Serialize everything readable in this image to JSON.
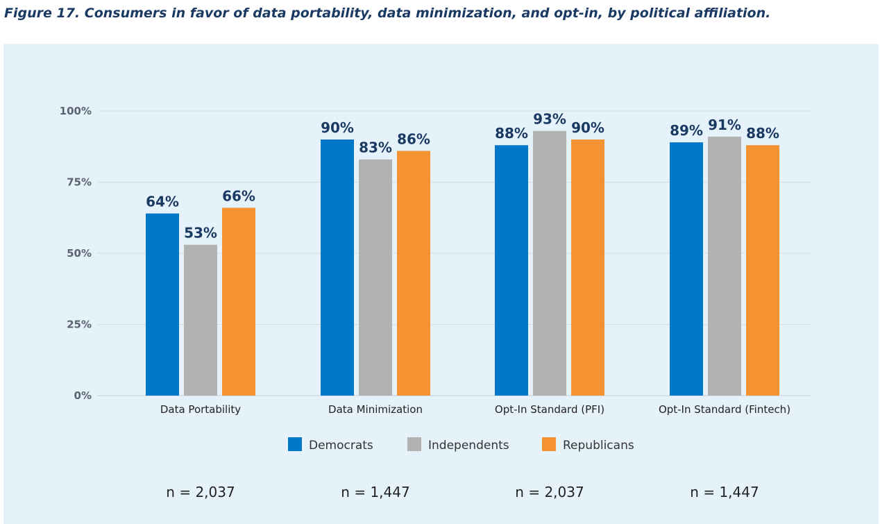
{
  "figure_title": "Figure 17. Consumers in favor of data portability, data minimization, and opt-in, by political affiliation.",
  "colors": {
    "democrats": "#0077c8",
    "independents": "#b2b2b2",
    "republicans": "#f59231",
    "grid": "#d3dde4",
    "panel_background": "#e6f2f9",
    "label_color": "#1a3a63"
  },
  "chart_data": {
    "type": "bar",
    "title": "",
    "xlabel": "",
    "ylabel": "",
    "ylim": [
      0,
      100
    ],
    "yticks": [
      "0%",
      "25%",
      "50%",
      "75%",
      "100%"
    ],
    "ytick_values": [
      0,
      25,
      50,
      75,
      100
    ],
    "grid": true,
    "legend_position": "bottom",
    "categories": [
      "Data Portability",
      "Data Minimization",
      "Opt-In Standard (PFI)",
      "Opt-In Standard (Fintech)"
    ],
    "series": [
      {
        "name": "Democrats",
        "color": "#0077c8",
        "values": [
          64,
          90,
          88,
          89
        ],
        "labels": [
          "64%",
          "90%",
          "88%",
          "89%"
        ]
      },
      {
        "name": "Independents",
        "color": "#b2b2b2",
        "values": [
          53,
          83,
          93,
          91
        ],
        "labels": [
          "53%",
          "83%",
          "93%",
          "91%"
        ]
      },
      {
        "name": "Republicans",
        "color": "#f59231",
        "values": [
          66,
          86,
          90,
          88
        ],
        "labels": [
          "66%",
          "86%",
          "90%",
          "88%"
        ]
      }
    ],
    "sample_sizes": [
      "n = 2,037",
      "n = 1,447",
      "n = 2,037",
      "n = 1,447"
    ]
  }
}
